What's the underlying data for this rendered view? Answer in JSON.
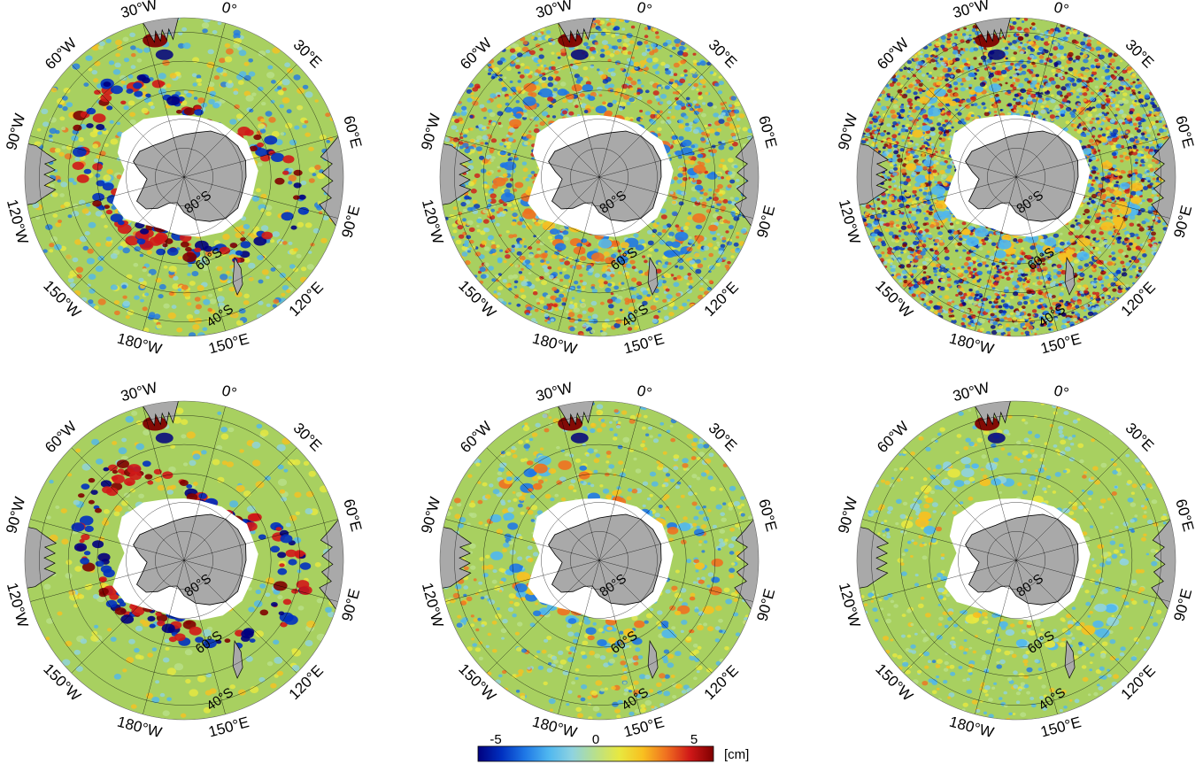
{
  "panels": [
    {
      "row": 0,
      "col": 0,
      "noise": 0.55,
      "grain": 1.0,
      "signal": 1.0
    },
    {
      "row": 0,
      "col": 1,
      "noise": 1.0,
      "grain": 1.6,
      "signal": 0.7
    },
    {
      "row": 0,
      "col": 2,
      "noise": 1.6,
      "grain": 2.0,
      "signal": 0.5
    },
    {
      "row": 1,
      "col": 0,
      "noise": 0.25,
      "grain": 0.8,
      "signal": 1.15
    },
    {
      "row": 1,
      "col": 1,
      "noise": 0.45,
      "grain": 1.4,
      "signal": 0.6
    },
    {
      "row": 1,
      "col": 2,
      "noise": 0.35,
      "grain": 1.7,
      "signal": 0.35
    }
  ],
  "longitude_labels": [
    {
      "text": "0°",
      "lon": 0
    },
    {
      "text": "30°E",
      "lon": 30
    },
    {
      "text": "60°E",
      "lon": 60
    },
    {
      "text": "90°E",
      "lon": 90
    },
    {
      "text": "120°E",
      "lon": 120
    },
    {
      "text": "150°E",
      "lon": 150
    },
    {
      "text": "180°W",
      "lon": 180
    },
    {
      "text": "150°W",
      "lon": -150
    },
    {
      "text": "120°W",
      "lon": -120
    },
    {
      "text": "90°W",
      "lon": -90
    },
    {
      "text": "60°W",
      "lon": -60
    },
    {
      "text": "30°W",
      "lon": -30
    }
  ],
  "latitude_labels": [
    {
      "text": "80°S",
      "lat": -80
    },
    {
      "text": "60°S",
      "lat": -60
    },
    {
      "text": "40°S",
      "lat": -40
    }
  ],
  "colorbar": {
    "min": -5,
    "max": 5,
    "ticks": [
      "-5",
      "0",
      "5"
    ],
    "unit": "[cm]",
    "colors": [
      "#00007f",
      "#0030c0",
      "#1f78e6",
      "#4fb7f0",
      "#8fd3e0",
      "#b9e08a",
      "#e8e840",
      "#f8c020",
      "#f07020",
      "#d01818",
      "#7f0000"
    ]
  },
  "colors": {
    "land": "#a9a9a9",
    "antarctica": "#a9a9a9",
    "ocean_base": "#a8d060",
    "grid": "#000000"
  }
}
